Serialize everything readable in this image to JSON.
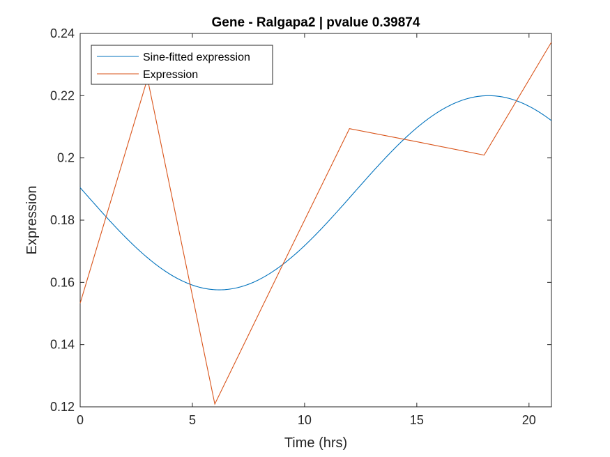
{
  "chart_data": {
    "type": "line",
    "title": "Gene - Ralgapa2 | pvalue 0.39874",
    "xlabel": "Time (hrs)",
    "ylabel": "Expression",
    "xlim": [
      0,
      21
    ],
    "ylim": [
      0.12,
      0.24
    ],
    "xticks": [
      0,
      5,
      10,
      15,
      20
    ],
    "xtick_labels": [
      "0",
      "5",
      "10",
      "15",
      "20"
    ],
    "yticks": [
      0.12,
      0.14,
      0.16,
      0.18,
      0.2,
      0.22,
      0.24
    ],
    "ytick_labels": [
      "0.12",
      "0.14",
      "0.16",
      "0.18",
      "0.2",
      "0.22",
      "0.24"
    ],
    "grid": false,
    "legend_position": "top-left",
    "series": [
      {
        "name": "Sine-fitted expression",
        "color": "#0072BD",
        "fit": {
          "mean": 0.1888,
          "amplitude": 0.0312,
          "period_hrs": 24,
          "peak_time_hrs": 18.2
        }
      },
      {
        "name": "Expression",
        "color": "#D95319",
        "x": [
          0,
          3,
          6,
          9,
          12,
          15,
          18,
          21
        ],
        "y": [
          0.1533,
          0.2255,
          0.1209,
          0.1653,
          0.2094,
          0.2052,
          0.2009,
          0.2372
        ]
      }
    ]
  }
}
